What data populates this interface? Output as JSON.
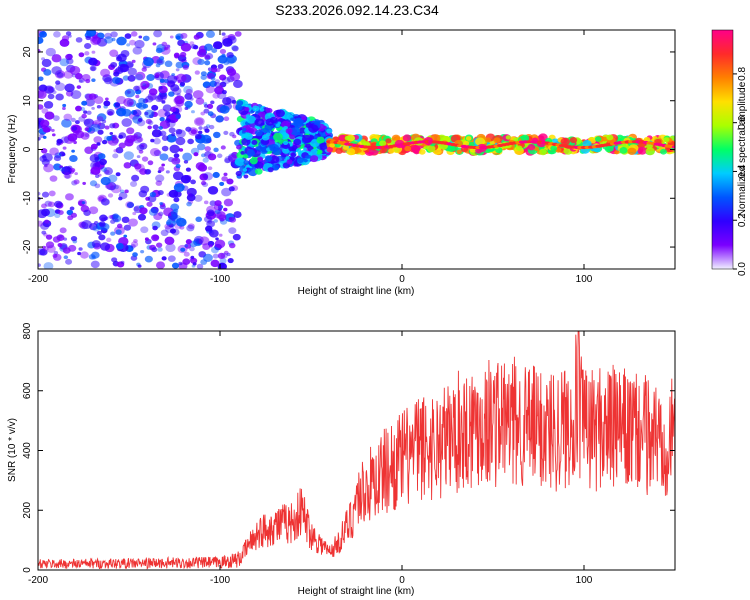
{
  "figure": {
    "title": "S233.2026.092.14.23.C34"
  },
  "chart_data": [
    {
      "type": "heatmap",
      "name": "spectrogram",
      "xlabel": "Height of straight line (km)",
      "ylabel": "Frequency (Hz)",
      "xlim": [
        -200,
        150
      ],
      "ylim": [
        -24.5,
        24.5
      ],
      "x_ticks": [
        -200,
        -100,
        0,
        100
      ],
      "x_tick_labels": [
        "-200",
        "-100",
        "0",
        "100"
      ],
      "y_ticks": [
        -20,
        -10,
        0,
        10,
        20
      ],
      "y_tick_labels": [
        "-20",
        "-10",
        "0",
        "10",
        "20"
      ],
      "description_regions": [
        {
          "x_range": [
            -200,
            -90
          ],
          "freq_spread": 24,
          "amplitude": [
            0.05,
            0.3
          ]
        },
        {
          "x_range": [
            -90,
            -40
          ],
          "freq_spread": 8,
          "amplitude": [
            0.1,
            0.5
          ]
        },
        {
          "x_range": [
            -40,
            150
          ],
          "freq_center": 1,
          "freq_spread": 1.5,
          "amplitude": [
            0.4,
            1.0
          ]
        }
      ],
      "colorbar": {
        "label": "Normalized spectral amplitude",
        "range": [
          0,
          0.98
        ],
        "ticks": [
          0.0,
          0.2,
          0.4,
          0.6,
          0.8
        ],
        "tick_labels": [
          "0.0",
          "0.2",
          "0.4",
          "0.6",
          "0.8"
        ],
        "colors": [
          "#f0f0ff",
          "#7a00ff",
          "#2f00ff",
          "#0055ff",
          "#00ccff",
          "#00ff66",
          "#aaff00",
          "#ffe000",
          "#ff8000",
          "#ff2a2a",
          "#ff0088"
        ]
      }
    },
    {
      "type": "line",
      "name": "snr",
      "xlabel": "Height of straight line (km)",
      "ylabel": "SNR (10 * v/v)",
      "xlim": [
        -200,
        150
      ],
      "ylim": [
        0,
        800
      ],
      "x_ticks": [
        -200,
        -100,
        0,
        100
      ],
      "x_tick_labels": [
        "-200",
        "-100",
        "0",
        "100"
      ],
      "y_ticks": [
        0,
        200,
        400,
        600,
        800
      ],
      "y_tick_labels": [
        "0",
        "200",
        "400",
        "600",
        "800"
      ],
      "color": "#ee3333",
      "envelope": [
        {
          "x": -200,
          "y": 20
        },
        {
          "x": -150,
          "y": 22
        },
        {
          "x": -100,
          "y": 25
        },
        {
          "x": -90,
          "y": 35
        },
        {
          "x": -80,
          "y": 120
        },
        {
          "x": -70,
          "y": 150
        },
        {
          "x": -60,
          "y": 160
        },
        {
          "x": -55,
          "y": 200
        },
        {
          "x": -50,
          "y": 120
        },
        {
          "x": -40,
          "y": 60
        },
        {
          "x": -35,
          "y": 90
        },
        {
          "x": -28,
          "y": 170
        },
        {
          "x": -25,
          "y": 240
        },
        {
          "x": -20,
          "y": 270
        },
        {
          "x": -10,
          "y": 330
        },
        {
          "x": 0,
          "y": 370
        },
        {
          "x": 10,
          "y": 410
        },
        {
          "x": 20,
          "y": 420
        },
        {
          "x": 30,
          "y": 460
        },
        {
          "x": 40,
          "y": 490
        },
        {
          "x": 50,
          "y": 500
        },
        {
          "x": 60,
          "y": 495
        },
        {
          "x": 70,
          "y": 480
        },
        {
          "x": 80,
          "y": 470
        },
        {
          "x": 90,
          "y": 480
        },
        {
          "x": 95,
          "y": 560
        },
        {
          "x": 100,
          "y": 470
        },
        {
          "x": 110,
          "y": 480
        },
        {
          "x": 120,
          "y": 470
        },
        {
          "x": 130,
          "y": 455
        },
        {
          "x": 140,
          "y": 450
        },
        {
          "x": 150,
          "y": 445
        }
      ],
      "peak": {
        "x": 97,
        "y": 800
      }
    }
  ]
}
